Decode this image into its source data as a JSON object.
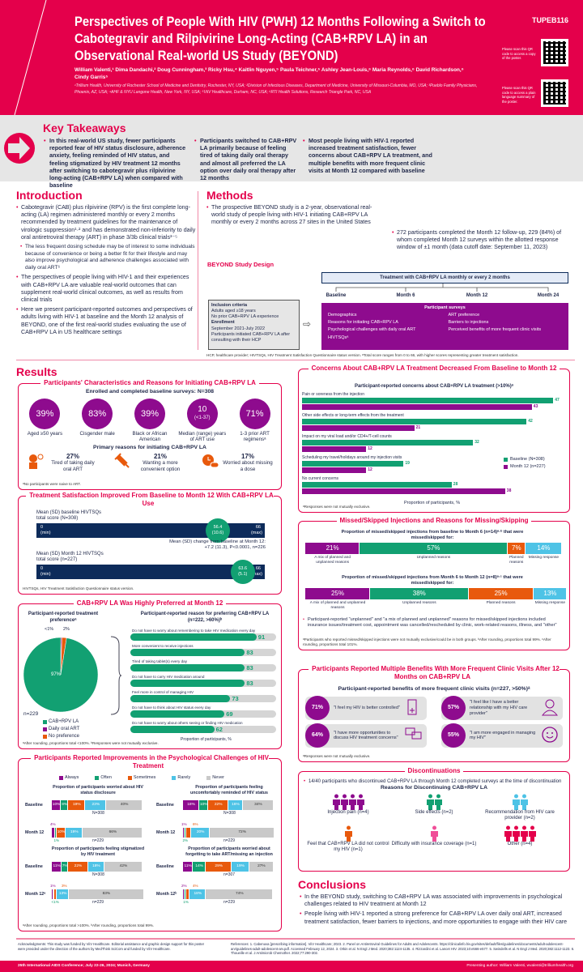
{
  "colors": {
    "brand_red": "#e4004b",
    "purple": "#8e0b8e",
    "green": "#12a072",
    "orange": "#e8590c",
    "light_blue": "#4ec3e6",
    "grey": "#c9c9c9",
    "navy": "#0d2b5a"
  },
  "header": {
    "title": "Perspectives of People With HIV (PWH) 12 Months Following a Switch to Cabotegravir and Rilpivirine Long-Acting (CAB+RPV LA) in an Observational Real-world US Study (BEYOND)",
    "poster_id": "TUPEB116",
    "authors": "William Valenti,¹ Dima Dandachi,² Doug Cunningham,³ Ricky Hsu,⁴ Kaitlin Nguyen,⁵ Paula Teichner,⁵ Ashley Jean-Louis,⁶ Maria Reynolds,⁶ David Richardson,⁶ Cindy Garris⁵",
    "affiliations": "¹Trillium Health, University of Rochester School of Medicine and Dentistry, Rochester, NY, USA; ²Division of Infectious Diseases, Department of Medicine, University of Missouri-Columbia, MO, USA; ³Pueblo Family Physicians, Phoenix, AZ, USA; ⁴AHF & NYU Langone Health, New York, NY, USA; ⁵ViiV Healthcare, Durham, NC, USA; ⁶RTI Health Solutions, Research Triangle Park, NC, USA",
    "qr1_caption": "Please scan this QR code to access a copy of the poster.",
    "qr2_caption": "Please scan this QR code to access a plain language summary of the poster."
  },
  "key_takeaways": {
    "title": "Key Takeaways",
    "items": [
      "In this real-world US study, fewer participants reported fear of HIV status disclosure, adherence anxiety, feeling reminded of HIV status, and feeling stigmatized by HIV treatment 12 months after switching to cabotegravir plus rilpivirine long-acting (CAB+RPV LA) when compared with baseline",
      "Participants switched to CAB+RPV LA primarily because of feeling tired of taking daily oral therapy and almost all preferred the LA option over daily oral therapy after 12 months",
      "Most people living with HIV-1 reported increased treatment satisfaction, fewer concerns about CAB+RPV LA treatment, and multiple benefits with more frequent clinic visits at Month 12 compared with baseline"
    ]
  },
  "introduction": {
    "title": "Introduction",
    "bullets": [
      {
        "text": "Cabotegravir (CAB) plus rilpivirine (RPV) is the first complete long-acting (LA) regimen administered monthly or every 2 months recommended by treatment guidelines for the maintenance of virologic suppression¹·² and has demonstrated non-inferiority to daily oral antiretroviral therapy (ART) in phase 3/3b clinical trials³⁻⁵",
        "sub": false
      },
      {
        "text": "The less frequent dosing schedule may be of interest to some individuals because of convenience or being a better fit for their lifestyle and may also improve psychological and adherence challenges associated with daily oral ART⁶",
        "sub": true
      },
      {
        "text": "The perspectives of people living with HIV-1 and their experiences with CAB+RPV LA are valuable real-world outcomes that can supplement real-world clinical outcomes, as well as results from clinical trials",
        "sub": false
      },
      {
        "text": "Here we present participant-reported outcomes and perspectives of adults living with HIV-1 at baseline and the Month 12 analysis of BEYOND, one of the first real-world studies evaluating the use of CAB+RPV LA in US healthcare settings",
        "sub": false
      }
    ]
  },
  "methods": {
    "title": "Methods",
    "bullets": [
      "The prospective BEYOND study is a 2-year, observational real-world study of people living with HIV-1 initiating CAB+RPV LA monthly or every 2 months across 27 sites in the United States",
      "272 participants completed the Month 12 follow-up, 229 (84%) of whom completed Month 12 surveys within the allotted response window of ±1 month (data cutoff date: September 11, 2023)"
    ],
    "design_title": "BEYOND Study Design",
    "treatment_label": "Treatment with CAB+RPV LA monthly or every 2 months",
    "timepoints": [
      "Baseline",
      "Month 6",
      "Month 12",
      "Month 24"
    ],
    "inclusion_title": "Inclusion criteria",
    "inclusion": [
      "Adults aged ≥18 years",
      "No prior CAB+RPV LA experience"
    ],
    "enrollment_title": "Enrollment",
    "enrollment": [
      "September 2021-July 2022",
      "Participants initiated CAB+RPV LA after consulting with their HCP"
    ],
    "surveys_title": "Participant surveys",
    "surveys": [
      "Demographics",
      "ART preference",
      "Reasons for initiating CAB+RPV LA",
      "Barriers to injections",
      "Psychological challenges with daily oral ART",
      "Perceived benefits of more frequent clinic visits",
      "HIVTSQsᵃ"
    ],
    "footnote": "HCP, healthcare provider; HIVTSQs, HIV Treatment Satisfaction Questionnaire status version. ᵃTotal score ranges from 0 to 66, with higher scores representing greater treatment satisfaction."
  },
  "results": {
    "title": "Results"
  },
  "characteristics": {
    "title": "Participants' Characteristics and Reasons for Initiating CAB+RPV LA",
    "subtitle": "Enrolled and completed baseline surveys: N=308",
    "stats": [
      {
        "value": "39%",
        "sub": "",
        "label": "Aged ≥50 years"
      },
      {
        "value": "83%",
        "sub": "",
        "label": "Cisgender male"
      },
      {
        "value": "39%",
        "sub": "",
        "label": "Black or African American"
      },
      {
        "value": "10",
        "sub": "(<1-37)",
        "label": "Median (range) years of ART use"
      },
      {
        "value": "71%",
        "sub": "",
        "label": "1-3 prior ART regimensᵃ"
      }
    ],
    "reasons_title": "Primary reasons for initiating CAB+RPV LA",
    "reasons": [
      {
        "value": "27%",
        "label": "Tired of taking daily oral ART",
        "icon": "person-tired-icon"
      },
      {
        "value": "21%",
        "label": "Wanting a more convenient option",
        "icon": "syringe-icon"
      },
      {
        "value": "17%",
        "label": "Worried about missing a dose",
        "icon": "clock-pill-icon"
      }
    ],
    "footnote": "ᵃNo participants were naive to ART."
  },
  "satisfaction": {
    "title": "Treatment Satisfaction Improved From Baseline to Month 12 With CAB+RPV LA Use",
    "rows": [
      {
        "label": "Mean (SD) baseline HIVTSQs total score (N=308)",
        "mean": 56.4,
        "mean_label": "56.4",
        "sd_label": "(10.6)"
      },
      {
        "label": "Mean (SD) Month 12 HIVTSQs total score (n=227)",
        "mean": 63.6,
        "mean_label": "63.6",
        "sd_label": "(5.1)"
      }
    ],
    "min_label": "0",
    "min_sub": "(min)",
    "max_label": "66",
    "max_sub": "(max)",
    "scale_max": 66,
    "change": "Mean (SD) change from baseline at Month 12: +7.2 (11.3), P<0.0001, n=226",
    "footnote": "HIVTSQs, HIV Treatment Satisfaction Questionnaire status version."
  },
  "preference": {
    "title": "CAB+RPV LA Was Highly Preferred at Month 12",
    "footnote": "ᵃAfter rounding, proportions total <100%. ᵇResponses were not mutually exclusive."
  },
  "psych": {
    "title": "Participants Reported Improvements in the Psychological Challenges of HIV Treatment",
    "footnote": "ᵃAfter rounding, proportions total >100%. ᵇAfter rounding, proportions total 99%."
  },
  "concerns": {
    "title": "Concerns About CAB+RPV LA Treatment Decreased From Baseline to Month 12",
    "footnote": "ᵃResponses were not mutually exclusive."
  },
  "missed": {
    "title": "Missed/Skipped Injections and Reasons for Missing/Skipping",
    "note": "Participant-reported \"unplanned\" and \"a mix of planned and unplanned\" reasons for missed/skipped injections included insurance issues/treatment cost, appointment was cancelled/rescheduled by clinic, work-related reasons, illness, and \"other\"",
    "footnote": "ᵃParticipants who reported missed/skipped injections were not mutually exclusive/could be in both groups. ᵇAfter rounding, proportions total 99%. ᶜAfter rounding, proportions total 101%."
  },
  "benefits": {
    "title": "Participants Reported Multiple Benefits With More Frequent Clinic Visits After 12 Months on CAB+RPV LA",
    "subtitle": "Participant-reported benefits of more frequent clinic visits (n=227, >50%)ᵃ",
    "items": [
      {
        "value": "71%",
        "label": "\"I feel my HIV is better controlled\"",
        "icon": "lab-report-icon"
      },
      {
        "value": "57%",
        "label": "\"I feel like I have a better relationship with my HIV care provider\"",
        "icon": "doctor-icon"
      },
      {
        "value": "64%",
        "label": "\"I have more opportunities to discuss HIV treatment concerns\"",
        "icon": "speech-bubbles-icon"
      },
      {
        "value": "55%",
        "label": "\"I am more engaged in managing my HIV\"",
        "icon": "smiley-icon"
      }
    ],
    "footnote": "ᵃResponses were not mutually exclusive."
  },
  "discontinuations": {
    "title": "Discontinuations",
    "bullet": "14/40 participants who discontinued CAB+RPV LA through Month 12 completed surveys at the time of discontinuation",
    "subtitle": "Reasons for Discontinuing CAB+RPV LA",
    "items": [
      {
        "label": "Injection pain (n=4)",
        "count": 4,
        "color": "#8e0b8e"
      },
      {
        "label": "Side effects (n=2)",
        "count": 2,
        "color": "#12a072"
      },
      {
        "label": "Recommendation from HIV care provider (n=2)",
        "count": 2,
        "color": "#4ec3e6"
      },
      {
        "label": "Feel that CAB+RPV LA did not control my HIV (n=1)",
        "count": 1,
        "color": "#e8590c"
      },
      {
        "label": "Difficulty with insurance coverage (n=1)",
        "count": 1,
        "color": "#f04e98"
      },
      {
        "label": "Other (n=4)",
        "count": 4,
        "color": "#e4004b"
      }
    ]
  },
  "conclusions": {
    "title": "Conclusions",
    "bullets": [
      "In the BEYOND study, switching to CAB+RPV LA was associated with improvements in psychological challenges related to HIV treatment at Month 12",
      "People living with HIV-1 reported a strong preference for CAB+RPV LA over daily oral ART, increased treatment satisfaction, fewer barriers to injections, and more opportunities to engage with their HIV care"
    ]
  },
  "footer": {
    "acknowledgments": "Acknowledgments: This study was funded by ViiV Healthcare. Editorial assistance and graphic design support for this poster were provided under the direction of the authors by MedThink SciCom and funded by ViiV Healthcare.",
    "references": "References: 1. Cabenuva [prescribing information]. ViiV Healthcare; 2023. 2. Panel on Antiretroviral Guidelines for Adults and Adolescents. https://clinicalinfo.hiv.gov/sites/default/files/guidelines/documents/adult-adolescent-arv/guidelines-adult-adolescent-arv.pdf. Accessed February 12, 2024. 3. Orkin et al. N Engl J Med. 2020;382:1124-1135. 4. Rizzardini et al. Lancet HIV. 2023;10:e566-e577. 5. Swindells et al. N Engl J Med. 2020;382:1112-1123. 6. Thoueille et al. J Antimicrob Chemother. 2022;77:290-302.",
    "conference": "25th International AIDS Conference; July 22-26, 2024; Munich, Germany",
    "presenting_author": "Presenting author: William Valenti, wvalenti@trilliumhealth.org"
  },
  "chart_data": [
    {
      "id": "preference_pie",
      "type": "pie",
      "title": "Participant-reported treatment preferenceᵃ",
      "n_label": "n=229",
      "slices": [
        {
          "name": "CAB+RPV LA",
          "value": 97,
          "label": "97%",
          "color": "#12a072"
        },
        {
          "name": "Daily oral ART",
          "value": 0.5,
          "label": "<1%",
          "color": "#8e0b8e"
        },
        {
          "name": "No preference",
          "value": 2,
          "label": "2%",
          "color": "#e8590c"
        }
      ]
    },
    {
      "id": "preference_reasons",
      "type": "bar",
      "title": "Participant-reported reason for preferring CAB+RPV LA (n=222, >60%)ᵇ",
      "xlabel": "Proportion of participants, %",
      "xlim": [
        0,
        100
      ],
      "categories": [
        "Do not have to worry about remembering to take HIV medication every day",
        "More convenient to receive injections",
        "Tired of taking tablet(s) every day",
        "Do not have to carry HIV medication around",
        "Feel more in control of managing HIV",
        "Do not have to think about HIV status every day",
        "Do not have to worry about others seeing or finding HIV medication"
      ],
      "values": [
        91,
        83,
        83,
        83,
        73,
        69,
        62
      ]
    },
    {
      "id": "psych",
      "type": "bar",
      "stacked": true,
      "legend": [
        "Always",
        "Often",
        "Sometimes",
        "Rarely",
        "Never"
      ],
      "colors": [
        "#8e0b8e",
        "#12a072",
        "#e8590c",
        "#4ec3e6",
        "#c9c9c9"
      ],
      "panels": [
        {
          "title": "Proportion of participants worried about HIV status disclosure",
          "rows": [
            {
              "label": "Baseline",
              "n": "N=308",
              "values": [
                10,
                8,
                19,
                23,
                40
              ],
              "labels": [
                "10%",
                "8%",
                "19%",
                "23%",
                "40%"
              ]
            },
            {
              "label": "Month 12",
              "n": "n=229",
              "values": [
                4,
                1,
                10,
                19,
                66
              ],
              "labels": [
                "4%",
                "1%",
                "10%",
                "19%",
                "66%"
              ]
            }
          ]
        },
        {
          "title": "Proportion of participants feeling uncomfortably reminded of HIV status",
          "rows": [
            {
              "label": "Baseline",
              "n": "N=308",
              "values": [
                18,
                10,
                22,
                16,
                34
              ],
              "labels": [
                "18%",
                "10%",
                "22%",
                "16%",
                "34%"
              ]
            },
            {
              "label": "Month 12",
              "n": "n=229",
              "values": [
                1,
                2,
                6,
                20,
                72
              ],
              "labels": [
                "1%",
                "2%",
                "6%",
                "20%",
                "72%"
              ]
            }
          ]
        },
        {
          "title": "Proportion of participants feeling stigmatized by HIV treatment",
          "rows": [
            {
              "label": "Baseline",
              "n": "N=308",
              "values": [
                11,
                7,
                22,
                18,
                42
              ],
              "labels": [
                "11%",
                "7%",
                "22%",
                "18%",
                "42%"
              ]
            },
            {
              "label": "Month 12ᵃ",
              "n": "n=229",
              "values": [
                1,
                0.5,
                3,
                13,
                83
              ],
              "labels": [
                "1%",
                "<1%",
                "3%",
                "13%",
                "83%"
              ]
            }
          ]
        },
        {
          "title": "Proportion of participants worried about forgetting to take ART/missing an injection",
          "rows": [
            {
              "label": "Baseline",
              "n": "n=307",
              "values": [
                11,
                14,
                29,
                19,
                27
              ],
              "labels": [
                "11%",
                "14%",
                "29%",
                "19%",
                "27%"
              ]
            },
            {
              "label": "Month 12ᵇ",
              "n": "n=229",
              "values": [
                2,
                1,
                4,
                18,
                74
              ],
              "labels": [
                "2%",
                "1%",
                "4%",
                "18%",
                "74%"
              ]
            }
          ]
        }
      ]
    },
    {
      "id": "concerns",
      "type": "bar",
      "title": "Participant-reported concerns about CAB+RPV LA treatment (>10%)ᵃ",
      "xlabel": "Proportion of participants, %",
      "categories": [
        "Pain or soreness from the injection",
        "Other side effects or long-term effects from the treatment",
        "Impact on my viral load and/or CD4+/T-cell counts",
        "Scheduling my travel/holidays around my injection visits",
        "No current concerns"
      ],
      "series": [
        {
          "name": "Baseline (N=308)",
          "color": "#12a072",
          "values": [
            47,
            42,
            32,
            19,
            28
          ]
        },
        {
          "name": "Month 12 (n=227)",
          "color": "#8e0b8e",
          "values": [
            43,
            21,
            12,
            12,
            38
          ]
        }
      ],
      "legend": "right"
    },
    {
      "id": "missed",
      "type": "bar",
      "stacked": true,
      "colors": [
        "#8e0b8e",
        "#12a072",
        "#e8590c",
        "#4ec3e6"
      ],
      "rows": [
        {
          "title": "Proportion of missed/skipped injections from baseline to Month 6 (n=14)ᵃ·ᵇ that were missed/skipped for:",
          "values": [
            21,
            57,
            7,
            14
          ],
          "labels": [
            "21%",
            "57%",
            "7%",
            "14%"
          ],
          "categories": [
            "A mix of planned and unplanned reasons",
            "Unplanned reasons",
            "Planned reasons",
            "Missing response"
          ]
        },
        {
          "title": "Proportion of missed/skipped injections from Month 6 to Month 12 (n=8)ᵃ·ᶜ that were missed/skipped for:",
          "values": [
            25,
            38,
            25,
            13
          ],
          "labels": [
            "25%",
            "38%",
            "25%",
            "13%"
          ],
          "categories": [
            "A mix of planned and unplanned reasons",
            "Unplanned reasons",
            "Planned reasons",
            "Missing response"
          ]
        }
      ]
    }
  ]
}
